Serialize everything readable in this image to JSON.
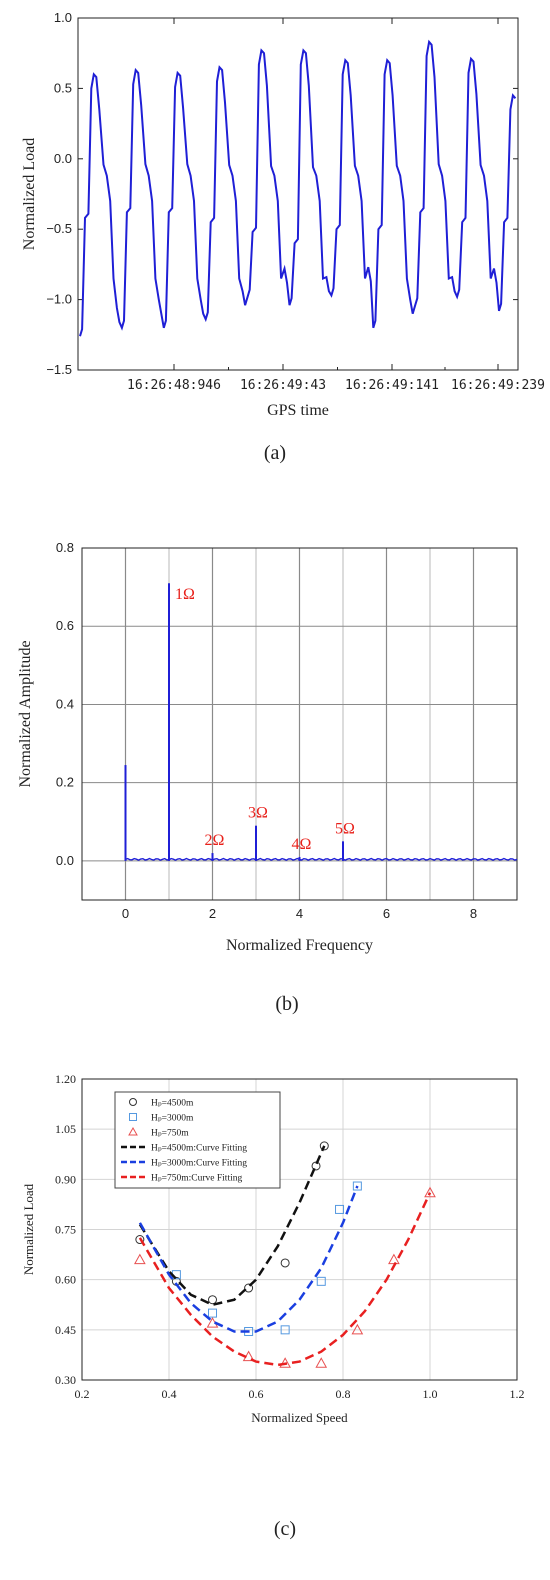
{
  "chart_data": [
    {
      "type": "line",
      "panel_label": "(a)",
      "xlabel": "GPS time",
      "ylabel": "Normalized Load",
      "ylim": [
        -1.5,
        1.0
      ],
      "yticks": [
        "−1.5",
        "−1.0",
        "−0.5",
        "0.0",
        "0.5",
        "1.0"
      ],
      "xticks": [
        "16:26:48:946",
        "16:26:49:43",
        "16:26:49:141",
        "16:26:49:239"
      ],
      "line_color": "#1f1fd6",
      "cycles": [
        {
          "trough": -1.26,
          "mid": -0.42,
          "peak": 0.6
        },
        {
          "trough": -1.2,
          "mid": -0.38,
          "peak": 0.63
        },
        {
          "trough": -1.2,
          "mid": -0.38,
          "peak": 0.61
        },
        {
          "trough": -1.14,
          "mid": -0.45,
          "peak": 0.65
        },
        {
          "trough": -0.98,
          "mid": -0.52,
          "peak": 0.77
        },
        {
          "trough": -1.04,
          "mid": -0.6,
          "peak": 0.77
        },
        {
          "trough": -0.97,
          "mid": -0.5,
          "peak": 0.7
        },
        {
          "trough": -1.2,
          "mid": -0.5,
          "peak": 0.7
        },
        {
          "trough": -1.04,
          "mid": -0.38,
          "peak": 0.83
        },
        {
          "trough": -0.98,
          "mid": -0.45,
          "peak": 0.71
        },
        {
          "trough": -1.08,
          "mid": -0.45,
          "peak": 0.45
        }
      ]
    },
    {
      "type": "line",
      "panel_label": "(b)",
      "xlabel": "Normalized Frequency",
      "ylabel": "Normalized Amplitude",
      "xlim": [
        -1,
        9
      ],
      "ylim": [
        -0.1,
        0.8
      ],
      "xticks": [
        "0",
        "2",
        "4",
        "6",
        "8"
      ],
      "yticks": [
        "0.0",
        "0.2",
        "0.4",
        "0.6",
        "0.8"
      ],
      "line_color": "#1f1fd6",
      "annotation_color": "#e8201a",
      "peaks": [
        {
          "x": 0,
          "y": 0.245,
          "label": ""
        },
        {
          "x": 1,
          "y": 0.71,
          "label": "1Ω"
        },
        {
          "x": 2,
          "y": 0.02,
          "label": "2Ω"
        },
        {
          "x": 3,
          "y": 0.09,
          "label": "3Ω"
        },
        {
          "x": 4,
          "y": 0.01,
          "label": "4Ω"
        },
        {
          "x": 5,
          "y": 0.05,
          "label": "5Ω"
        }
      ]
    },
    {
      "type": "scatter",
      "panel_label": "(c)",
      "xlabel": "Normalized Speed",
      "ylabel": "Normalized Load",
      "xlim": [
        0.2,
        1.2
      ],
      "ylim": [
        0.3,
        1.2
      ],
      "xticks": [
        "0.2",
        "0.4",
        "0.6",
        "0.8",
        "1.0",
        "1.2"
      ],
      "yticks": [
        "0.30",
        "0.45",
        "0.60",
        "0.75",
        "0.90",
        "1.05",
        "1.20"
      ],
      "legend_position": "top-left",
      "series": [
        {
          "name": "Hₚ=4500m",
          "marker": "circle",
          "color": "#333333",
          "x": [
            0.333,
            0.417,
            0.5,
            0.583,
            0.667,
            0.738,
            0.757
          ],
          "y": [
            0.72,
            0.595,
            0.54,
            0.575,
            0.65,
            0.94,
            1.0
          ]
        },
        {
          "name": "Hₚ=3000m",
          "marker": "square",
          "color": "#5599e0",
          "x": [
            0.417,
            0.5,
            0.583,
            0.667,
            0.75,
            0.792,
            0.833
          ],
          "y": [
            0.615,
            0.5,
            0.445,
            0.45,
            0.595,
            0.81,
            0.88
          ]
        },
        {
          "name": "Hₚ=750m",
          "marker": "triangle",
          "color": "#e85050",
          "x": [
            0.333,
            0.5,
            0.583,
            0.667,
            0.75,
            0.833,
            0.917,
            1.0
          ],
          "y": [
            0.66,
            0.47,
            0.37,
            0.35,
            0.35,
            0.45,
            0.66,
            0.86
          ]
        },
        {
          "name": "Hₚ=4500m:Curve Fitting",
          "line": "dashed",
          "color": "#111111",
          "x": [
            0.333,
            0.4,
            0.45,
            0.5,
            0.55,
            0.6,
            0.65,
            0.7,
            0.757
          ],
          "y": [
            0.765,
            0.625,
            0.555,
            0.525,
            0.54,
            0.6,
            0.7,
            0.83,
            1.0
          ]
        },
        {
          "name": "Hₚ=3000m:Curve Fitting",
          "line": "dashed",
          "color": "#1a3fe0",
          "x": [
            0.333,
            0.4,
            0.45,
            0.5,
            0.55,
            0.6,
            0.65,
            0.7,
            0.75,
            0.8,
            0.833
          ],
          "y": [
            0.77,
            0.615,
            0.53,
            0.475,
            0.445,
            0.445,
            0.475,
            0.54,
            0.635,
            0.77,
            0.88
          ]
        },
        {
          "name": "Hₚ=750m:Curve Fitting",
          "line": "dashed",
          "color": "#e82020",
          "x": [
            0.333,
            0.4,
            0.45,
            0.5,
            0.55,
            0.6,
            0.65,
            0.7,
            0.75,
            0.8,
            0.85,
            0.9,
            0.95,
            1.0
          ],
          "y": [
            0.725,
            0.575,
            0.495,
            0.43,
            0.385,
            0.355,
            0.345,
            0.355,
            0.385,
            0.435,
            0.505,
            0.6,
            0.72,
            0.86
          ]
        }
      ]
    }
  ]
}
